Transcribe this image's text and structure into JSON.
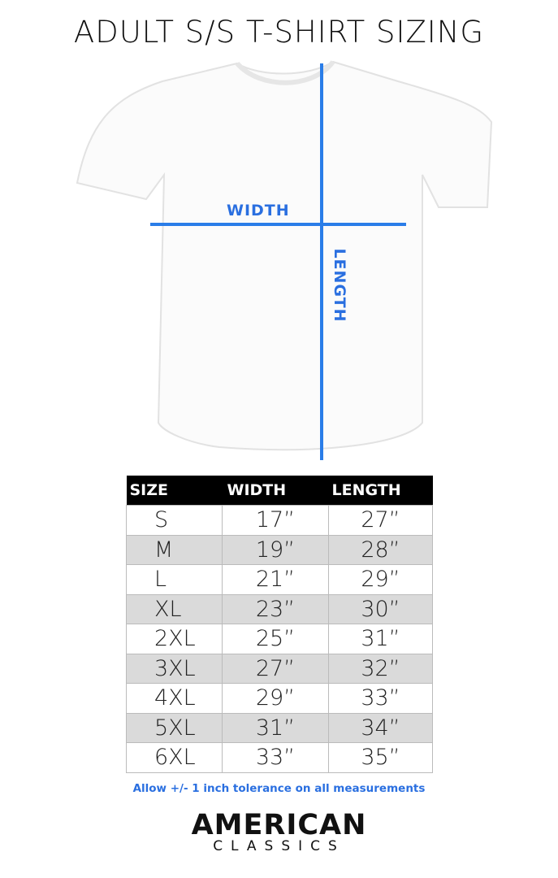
{
  "title": "ADULT S/S T-SHIRT SIZING",
  "diagram": {
    "width_label": "WIDTH",
    "length_label": "LENGTH",
    "line_color": "#2a7de8"
  },
  "table": {
    "headers": [
      "SIZE",
      "WIDTH",
      "LENGTH"
    ],
    "rows": [
      [
        "S",
        "17”",
        "27”"
      ],
      [
        "M",
        "19”",
        "28”"
      ],
      [
        "L",
        "21”",
        "29”"
      ],
      [
        "XL",
        "23”",
        "30”"
      ],
      [
        "2XL",
        "25”",
        "31”"
      ],
      [
        "3XL",
        "27”",
        "32”"
      ],
      [
        "4XL",
        "29”",
        "33”"
      ],
      [
        "5XL",
        "31”",
        "34”"
      ],
      [
        "6XL",
        "33”",
        "35”"
      ]
    ]
  },
  "note": "Allow +/- 1 inch tolerance on all measurements",
  "logo": {
    "line1": "AMERICAN",
    "line2": "CLASSICS"
  }
}
